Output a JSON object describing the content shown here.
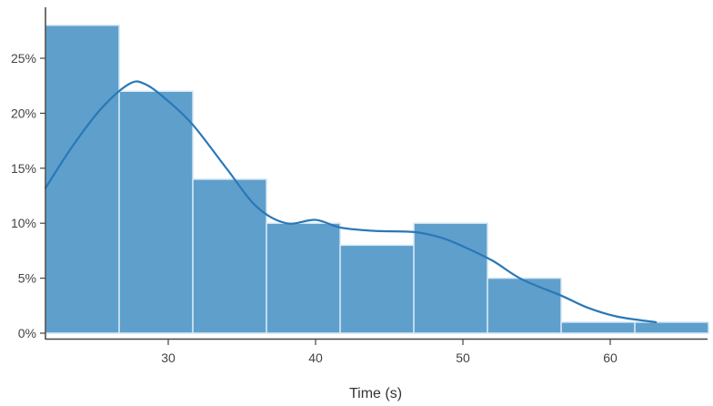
{
  "chart_data": {
    "type": "bar",
    "subtype": "histogram_with_kde",
    "title": "",
    "xlabel": "Time (s)",
    "ylabel": "",
    "x_ticks": [
      30,
      40,
      50,
      60
    ],
    "y_ticks": [
      "0%",
      "5%",
      "10%",
      "15%",
      "20%",
      "25%"
    ],
    "y_tick_values": [
      0,
      5,
      10,
      15,
      20,
      25
    ],
    "xlim": [
      21.67,
      66.67
    ],
    "ylim": [
      0,
      29.8
    ],
    "bin_width": 5,
    "bins": [
      {
        "start": 21.67,
        "end": 26.67,
        "value": 28
      },
      {
        "start": 26.67,
        "end": 31.67,
        "value": 22
      },
      {
        "start": 31.67,
        "end": 36.67,
        "value": 14
      },
      {
        "start": 36.67,
        "end": 41.67,
        "value": 10
      },
      {
        "start": 41.67,
        "end": 46.67,
        "value": 8
      },
      {
        "start": 46.67,
        "end": 51.67,
        "value": 10
      },
      {
        "start": 51.67,
        "end": 56.67,
        "value": 5
      },
      {
        "start": 56.67,
        "end": 61.67,
        "value": 1
      },
      {
        "start": 61.67,
        "end": 66.67,
        "value": 1
      }
    ],
    "categories": [
      "21.7-26.7",
      "26.7-31.7",
      "31.7-36.7",
      "36.7-41.7",
      "41.7-46.7",
      "46.7-51.7",
      "51.7-56.7",
      "56.7-61.7",
      "61.7-66.7"
    ],
    "values": [
      28,
      22,
      14,
      10,
      8,
      10,
      5,
      1,
      1
    ],
    "kde": {
      "x": [
        21.67,
        23.5,
        25.5,
        27.4,
        28.5,
        30.0,
        31.7,
        34.0,
        36.0,
        38.0,
        40.0,
        41.7,
        44.0,
        46.7,
        48.5,
        50.0,
        52.0,
        54.0,
        56.7,
        58.5,
        60.5,
        63.1
      ],
      "y": [
        13.2,
        17.0,
        20.5,
        22.7,
        22.6,
        21.1,
        18.9,
        14.9,
        11.5,
        10.0,
        10.3,
        9.6,
        9.3,
        9.2,
        8.7,
        7.9,
        6.6,
        4.9,
        3.4,
        2.3,
        1.5,
        1.0
      ]
    },
    "grid": false,
    "legend": null
  },
  "colors": {
    "bar_fill": "#5f9fcc",
    "bar_edge": "#d6e8f6",
    "kde_line": "#2a78b6",
    "axis": "#444444",
    "text": "#444444"
  },
  "axes": {
    "x_title": "Time (s)"
  }
}
